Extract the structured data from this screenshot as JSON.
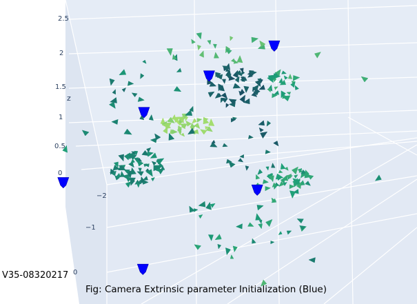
{
  "chart_data": {
    "type": "scatter3d",
    "title": "",
    "xlabel": "",
    "ylabel": "",
    "zlabel": "z",
    "z_ticks": [
      "2.5",
      "2",
      "1.5",
      "1",
      "0.5",
      "0"
    ],
    "y_ticks": [
      "−2",
      "−1",
      "0"
    ],
    "zlim": [
      0,
      2.6
    ],
    "grid": true,
    "series": [
      {
        "color": "#0000ff",
        "role": "initialized extrinsics",
        "points": [
          {
            "x": -1.8,
            "y": -0.4,
            "z": 0.05
          },
          {
            "x": 1.2,
            "y": -0.6,
            "z": 0.0
          },
          {
            "x": 0.2,
            "y": 0.8,
            "z": 1.3
          },
          {
            "x": 1.1,
            "y": 1.3,
            "z": 1.6
          },
          {
            "x": -0.7,
            "y": 0.3,
            "z": 0.9
          },
          {
            "x": -0.3,
            "y": -1.9,
            "z": -0.8
          }
        ]
      }
    ]
  },
  "labels": {
    "sample_id": "V35-08320217",
    "caption": "Fig: Camera Extrinsic parameter Initialization (Blue)"
  }
}
